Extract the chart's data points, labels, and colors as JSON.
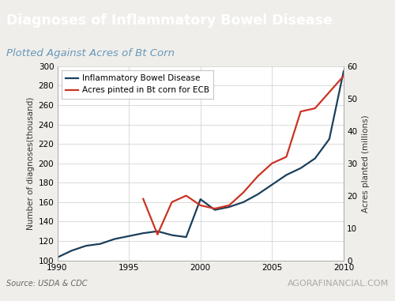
{
  "title": "Diagnoses of Inflammatory Bowel Disease",
  "subtitle": "Plotted Against Acres of Bt Corn",
  "title_bg_color": "#0d3a55",
  "title_text_color": "#ffffff",
  "subtitle_color": "#6699bb",
  "source_text": "Source: USDA & CDC",
  "watermark_text": "AGORAFINANCIAL.COM",
  "ibd_label": "Inflammatory Bowel Disease",
  "acres_label": "Acres pinted in Bt corn for ECB",
  "ibd_color": "#1a3f5c",
  "acres_color": "#cc3322",
  "ylabel_left": "Number of diagnoses(thousand)",
  "ylabel_right": "Acres planted (millions)",
  "ylim_left": [
    100,
    300
  ],
  "ylim_right": [
    0,
    60
  ],
  "yticks_left": [
    100,
    120,
    140,
    160,
    180,
    200,
    220,
    240,
    260,
    280,
    300
  ],
  "yticks_right": [
    0,
    10,
    20,
    30,
    40,
    50,
    60
  ],
  "xlim": [
    1990,
    2010
  ],
  "xticks": [
    1990,
    1995,
    2000,
    2005,
    2010
  ],
  "ibd_x": [
    1990,
    1991,
    1992,
    1993,
    1994,
    1995,
    1996,
    1997,
    1998,
    1999,
    2000,
    2001,
    2002,
    2003,
    2004,
    2005,
    2006,
    2007,
    2008,
    2009,
    2010
  ],
  "ibd_y": [
    103,
    110,
    115,
    117,
    122,
    125,
    128,
    130,
    126,
    124,
    163,
    152,
    155,
    160,
    168,
    178,
    188,
    195,
    205,
    225,
    295
  ],
  "acres_x": [
    1996,
    1997,
    1998,
    1999,
    2000,
    2001,
    2002,
    2003,
    2004,
    2005,
    2006,
    2007,
    2008,
    2009,
    2010
  ],
  "acres_y": [
    19,
    8,
    18,
    20,
    17,
    16,
    17,
    21,
    26,
    30,
    32,
    46,
    47,
    52,
    57
  ],
  "bg_color": "#f0eeea",
  "plot_bg_color": "#ffffff",
  "grid_color": "#cccccc",
  "line_width": 1.6,
  "border_color": "#aaaaaa"
}
